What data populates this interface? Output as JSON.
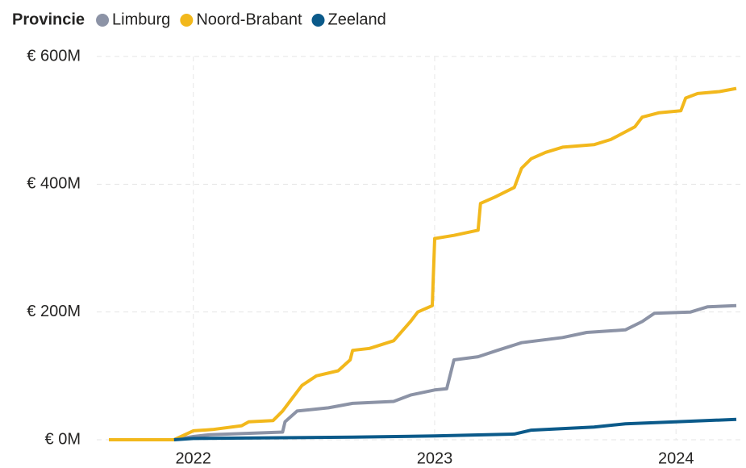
{
  "chart_data": {
    "type": "line",
    "legend_title": "Provincie",
    "xlim": [
      2021.6,
      2024.28
    ],
    "xticks": [
      2022,
      2023,
      2024
    ],
    "ylim": [
      0,
      600
    ],
    "yticks": [
      {
        "value": 0,
        "label": "€ 0M"
      },
      {
        "value": 200,
        "label": "€ 200M"
      },
      {
        "value": 400,
        "label": "€ 400M"
      },
      {
        "value": 600,
        "label": "€ 600M"
      }
    ],
    "grid": true,
    "legend": "top-left",
    "series": [
      {
        "name": "Limburg",
        "color": "#8c93a6",
        "x": [
          2021.65,
          2021.92,
          2022.0,
          2022.07,
          2022.37,
          2022.38,
          2022.43,
          2022.56,
          2022.66,
          2022.83,
          2022.9,
          2023.0,
          2023.05,
          2023.08,
          2023.18,
          2023.26,
          2023.36,
          2023.53,
          2023.63,
          2023.79,
          2023.86,
          2023.91,
          2024.06,
          2024.13,
          2024.25
        ],
        "values": [
          0,
          0,
          5,
          8,
          12,
          28,
          45,
          50,
          57,
          60,
          70,
          78,
          80,
          125,
          130,
          140,
          152,
          160,
          168,
          172,
          185,
          198,
          200,
          208,
          210
        ]
      },
      {
        "name": "Noord-Brabant",
        "color": "#f2b81c",
        "x": [
          2021.65,
          2021.92,
          2022.0,
          2022.08,
          2022.2,
          2022.23,
          2022.33,
          2022.37,
          2022.41,
          2022.45,
          2022.51,
          2022.6,
          2022.65,
          2022.66,
          2022.73,
          2022.83,
          2022.9,
          2022.93,
          2022.99,
          2023.0,
          2023.08,
          2023.18,
          2023.19,
          2023.25,
          2023.33,
          2023.36,
          2023.4,
          2023.46,
          2023.53,
          2023.66,
          2023.73,
          2023.83,
          2023.86,
          2023.93,
          2024.02,
          2024.04,
          2024.09,
          2024.18,
          2024.25
        ],
        "values": [
          0,
          0,
          14,
          16,
          22,
          28,
          30,
          45,
          65,
          85,
          100,
          108,
          125,
          140,
          143,
          155,
          185,
          200,
          210,
          315,
          320,
          328,
          370,
          380,
          395,
          425,
          440,
          450,
          458,
          462,
          470,
          490,
          505,
          512,
          515,
          535,
          542,
          545,
          550
        ]
      },
      {
        "name": "Zeeland",
        "color": "#0b5a8a",
        "x": [
          2021.92,
          2022.0,
          2022.66,
          2023.0,
          2023.33,
          2023.4,
          2023.66,
          2023.79,
          2024.0,
          2024.25
        ],
        "values": [
          0,
          2,
          4,
          6,
          9,
          15,
          20,
          25,
          28,
          32
        ]
      }
    ]
  }
}
